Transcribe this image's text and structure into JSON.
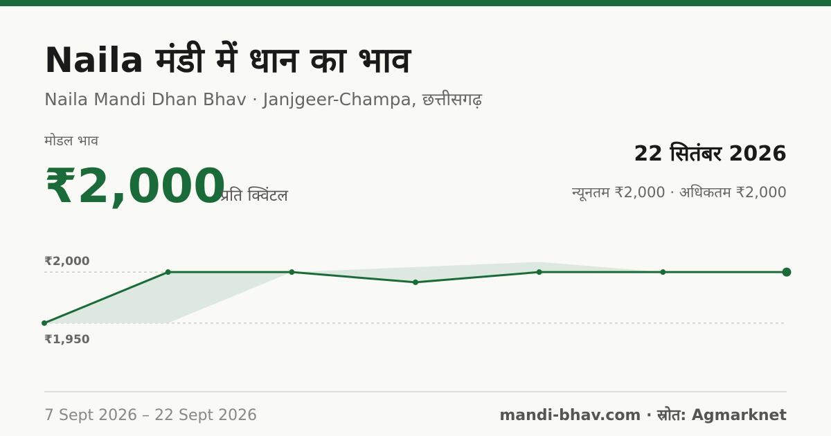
{
  "header": {
    "title": "Naila मंडी में धान का भाव",
    "subtitle": "Naila Mandi Dhan Bhav · Janjgeer-Champa, छत्तीसगढ़"
  },
  "summary": {
    "label": "मोडल भाव",
    "price": "₹2,000",
    "unit": "प्रति क्विंटल",
    "date": "22 सितंबर 2026",
    "range": "न्यूनतम ₹2,000 · अधिकतम ₹2,000"
  },
  "chart_data": {
    "type": "line",
    "color": "#1b6b3a",
    "band_color": "#dde9e0",
    "values": [
      1950,
      2000,
      2000,
      1990,
      2000,
      2000,
      2000
    ],
    "range": {
      "min": [
        1950,
        1950,
        2000,
        1990,
        2000,
        2000,
        2000
      ],
      "max": [
        1950,
        2000,
        2000,
        2005,
        2010,
        2000,
        2000
      ]
    },
    "ylim": [
      1920,
      2030
    ],
    "yticks": [
      {
        "value": 1950,
        "label": "₹1,950"
      },
      {
        "value": 2000,
        "label": "₹2,000"
      }
    ],
    "grid": true
  },
  "footer": {
    "period": "7 Sept 2026 – 22 Sept 2026",
    "source": "mandi-bhav.com · स्रोत: Agmarknet"
  }
}
